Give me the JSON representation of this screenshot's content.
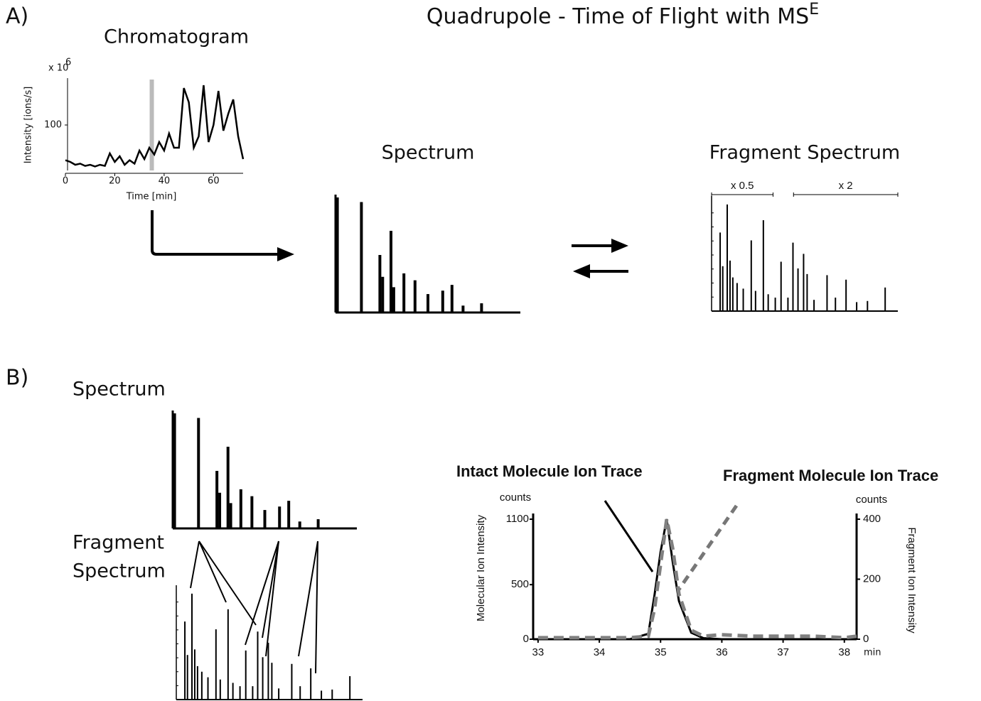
{
  "labels": {
    "panel_a": "A)",
    "panel_b": "B)",
    "title": "Quadrupole - Time of Flight with MS",
    "title_superscript": "E",
    "spectrum_b": "Spectrum",
    "fragment_b_line1": "Fragment",
    "fragment_b_line2": "Spectrum"
  },
  "chart_data": [
    {
      "type": "line",
      "title": "Chromatogram",
      "x_label": "Time [min]",
      "y_label": "Intensity [ions/s]",
      "y_scale_label": "x 10",
      "y_scale_exponent": "6",
      "xlim": [
        0,
        72
      ],
      "ylim": [
        20,
        180
      ],
      "xticks": [
        0,
        20,
        40,
        60
      ],
      "yticks": [
        100
      ],
      "highlight_x": 35,
      "color": "#000000",
      "x": [
        0,
        2,
        4,
        6,
        8,
        10,
        12,
        14,
        16,
        18,
        20,
        22,
        24,
        26,
        28,
        30,
        32,
        34,
        36,
        38,
        40,
        42,
        44,
        46,
        48,
        50,
        52,
        54,
        56,
        58,
        60,
        62,
        64,
        66,
        68,
        70,
        72
      ],
      "values": [
        38,
        35,
        30,
        32,
        28,
        30,
        27,
        30,
        28,
        50,
        35,
        45,
        30,
        38,
        32,
        55,
        40,
        60,
        48,
        70,
        55,
        85,
        60,
        60,
        165,
        140,
        60,
        80,
        170,
        70,
        100,
        160,
        90,
        120,
        145,
        80,
        40
      ]
    },
    {
      "type": "bar",
      "title": "Spectrum",
      "xlim": [
        0,
        100
      ],
      "ylim": [
        0,
        100
      ],
      "color": "#000000",
      "x": [
        1,
        14,
        24,
        25.5,
        30,
        31.5,
        37,
        43,
        50,
        58,
        63,
        69,
        79
      ],
      "values": [
        100,
        96,
        50,
        31,
        71,
        22,
        34,
        28,
        16,
        19,
        24,
        6,
        8
      ]
    },
    {
      "type": "stem",
      "title": "Fragment Spectrum",
      "xlim": [
        0,
        100
      ],
      "ylim": [
        0,
        100
      ],
      "color": "#000000",
      "ranges": [
        {
          "label": "x 0.5",
          "from": 0,
          "to": 33
        },
        {
          "label": "x 2",
          "from": 44,
          "to": 100
        }
      ],
      "x": [
        4.6,
        6,
        8.4,
        9.9,
        11.4,
        13.7,
        17,
        21.3,
        23.6,
        27.8,
        30.4,
        34.2,
        37.3,
        41,
        43.7,
        46.4,
        49.4,
        51.3,
        55,
        62,
        66.5,
        72.2,
        77.9,
        83.7,
        93.2
      ],
      "values": [
        70,
        40,
        95,
        45,
        30,
        25,
        20,
        63,
        18,
        81,
        15,
        12,
        44,
        12,
        61,
        38,
        51,
        33,
        10,
        32,
        12,
        28,
        8,
        9,
        21
      ]
    },
    {
      "type": "line",
      "x_label": "min",
      "y_label": "Molecular Ion Intensity",
      "y2_label": "Fragment Ion Intensity",
      "y_unit": "counts",
      "y2_unit": "counts",
      "xlim": [
        32.92,
        38.2
      ],
      "ylim": [
        0,
        1100
      ],
      "y2lim": [
        0,
        400
      ],
      "xticks": [
        33,
        34,
        35,
        36,
        37,
        38
      ],
      "yticks": [
        0,
        500,
        1100
      ],
      "y2ticks": [
        0,
        200,
        400
      ],
      "x": [
        33,
        33.5,
        34,
        34.5,
        34.8,
        34.9,
        35,
        35.1,
        35.2,
        35.3,
        35.5,
        35.7,
        36,
        36.5,
        37,
        37.5,
        38,
        38.2
      ],
      "series": [
        {
          "name": "Intact Molecule Ion Trace",
          "color": "#000000",
          "values": [
            0,
            0,
            0,
            0,
            50,
            400,
            800,
            1100,
            700,
            350,
            60,
            10,
            0,
            0,
            0,
            0,
            0,
            0
          ]
        },
        {
          "name": "Fragment Molecule Ion Trace",
          "color": "#808080",
          "axis": "y2",
          "dashed": true,
          "values": [
            5,
            5,
            5,
            5,
            10,
            100,
            250,
            400,
            300,
            150,
            30,
            10,
            15,
            10,
            10,
            10,
            5,
            10
          ]
        }
      ]
    }
  ]
}
